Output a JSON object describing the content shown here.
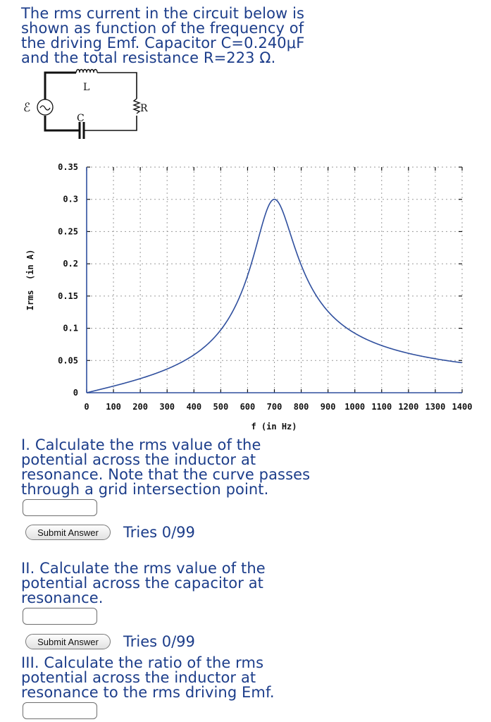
{
  "intro": {
    "lines": [
      "The rms current in the circuit below is",
      "shown as function of the frequency of",
      "the driving Emf. Capacitor C=0.240μF",
      "and the total resistance R=223 Ω."
    ],
    "capacitance_uF": 0.24,
    "resistance_ohm": 223
  },
  "circuit": {
    "emf_label": "ℰ",
    "inductor_label": "L",
    "capacitor_label": "C",
    "resistor_label": "R"
  },
  "chart_data": {
    "type": "line",
    "title": "",
    "xlabel": "f (in Hz)",
    "ylabel": "Irms  (in A)",
    "xlim": [
      0,
      1400
    ],
    "ylim": [
      0,
      0.35
    ],
    "grid": true,
    "x_ticks": [
      0,
      100,
      200,
      300,
      400,
      500,
      600,
      700,
      800,
      900,
      1000,
      1100,
      1200,
      1300,
      1400
    ],
    "y_ticks": [
      0,
      0.05,
      0.1,
      0.15,
      0.2,
      0.25,
      0.3,
      0.35
    ],
    "y_tick_labels": [
      "0",
      "0.05",
      "0.1",
      "0.15",
      "0.2",
      "0.25",
      "0.3",
      "0.35"
    ],
    "line_color": "#2f4f9e",
    "series": [
      {
        "name": "Irms",
        "x": [
          0,
          100,
          200,
          300,
          400,
          500,
          600,
          650,
          700,
          750,
          800,
          900,
          1000,
          1100,
          1200,
          1300,
          1400
        ],
        "values": [
          0.0,
          0.016,
          0.033,
          0.053,
          0.074,
          0.1,
          0.16,
          0.23,
          0.3,
          0.235,
          0.168,
          0.105,
          0.079,
          0.066,
          0.058,
          0.052,
          0.047
        ]
      }
    ],
    "resonance": {
      "frequency_hz": 700,
      "current_a": 0.3
    }
  },
  "questions": [
    {
      "lines": [
        "I. Calculate the rms value of the",
        "potential across the inductor at",
        "resonance. Note that the curve passes",
        "through a grid intersection point."
      ],
      "input_value": "",
      "submit_label": "Submit Answer",
      "tries": "Tries 0/99"
    },
    {
      "lines": [
        "II. Calculate the rms value of the",
        "potential across the capacitor at",
        "resonance."
      ],
      "input_value": "",
      "submit_label": "Submit Answer",
      "tries": "Tries 0/99"
    },
    {
      "lines": [
        "III. Calculate the ratio of the rms",
        "potential across the inductor at",
        "resonance to the rms driving Emf."
      ],
      "input_value": ""
    }
  ]
}
